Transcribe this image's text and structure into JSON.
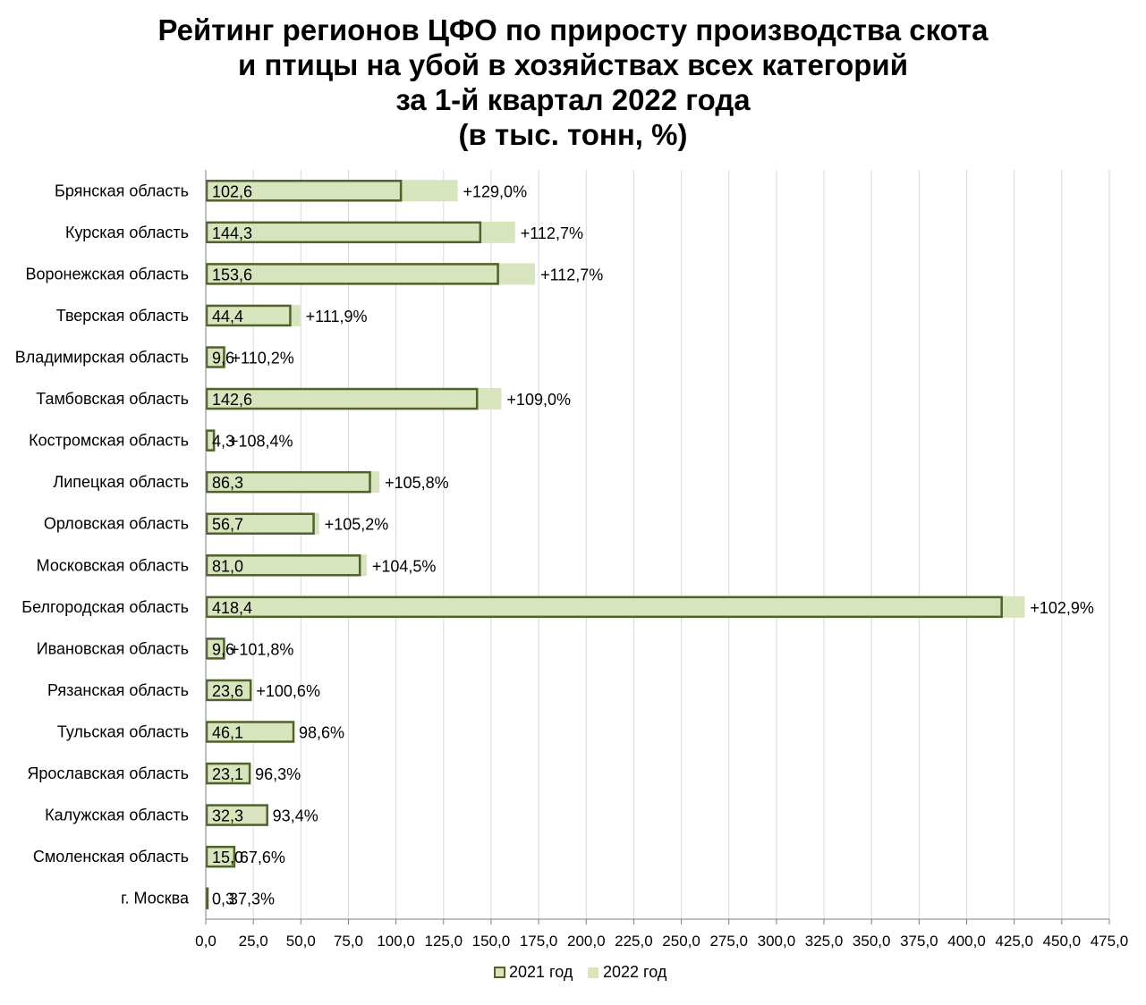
{
  "chart_data": {
    "type": "bar",
    "orientation": "horizontal",
    "title_lines": [
      "Рейтинг регионов ЦФО по приросту производства скота",
      "и птицы на убой в хозяйствах всех категорий",
      "за 1-й квартал 2022 года",
      "(в тыс. тонн, %)"
    ],
    "categories": [
      "Брянская область",
      "Курская область",
      "Воронежская область",
      "Тверская область",
      "Владимирская область",
      "Тамбовская область",
      "Костромская область",
      "Липецкая область",
      "Орловская область",
      "Московская область",
      "Белгородская область",
      "Ивановская область",
      "Рязанская область",
      "Тульская область",
      "Ярославская область",
      "Калужская область",
      "Смоленская область",
      "г. Москва"
    ],
    "series": [
      {
        "name": "2021 год",
        "values": [
          102.6,
          144.3,
          153.6,
          44.4,
          9.6,
          142.6,
          4.3,
          86.3,
          56.7,
          81.0,
          418.4,
          9.6,
          23.6,
          46.1,
          23.1,
          32.3,
          15.0,
          0.3
        ],
        "labels": [
          "102,6",
          "144,3",
          "153,6",
          "44,4",
          "9,6",
          "142,6",
          "4,3",
          "86,3",
          "56,7",
          "81,0",
          "418,4",
          "9,6",
          "23,6",
          "46,1",
          "23,1",
          "32,3",
          "15,0",
          "0,3"
        ],
        "color": "#4f6228",
        "fill": "#d7e4bd"
      },
      {
        "name": "2022 год",
        "values": [
          132.4,
          162.6,
          173.1,
          49.7,
          10.6,
          155.4,
          4.7,
          91.3,
          59.6,
          84.6,
          430.5,
          9.8,
          23.7,
          45.5,
          22.2,
          30.2,
          10.1,
          0.1
        ],
        "color": "#d7e4bd"
      }
    ],
    "growth_labels": [
      "+129,0%",
      "+112,7%",
      "+112,7%",
      "+111,9%",
      "+110,2%",
      "+109,0%",
      "+108,4%",
      "+105,8%",
      "+105,2%",
      "+104,5%",
      "+102,9%",
      "+101,8%",
      "+100,6%",
      "98,6%",
      "96,3%",
      "93,4%",
      "67,6%",
      "37,3%"
    ],
    "x_ticks": [
      "0,0",
      "25,0",
      "50,0",
      "75,0",
      "100,0",
      "125,0",
      "150,0",
      "175,0",
      "200,0",
      "225,0",
      "250,0",
      "275,0",
      "300,0",
      "325,0",
      "350,0",
      "375,0",
      "400,0",
      "425,0",
      "450,0",
      "475,0"
    ],
    "xlim": [
      0,
      475
    ],
    "grid": true,
    "legend_position": "bottom"
  }
}
